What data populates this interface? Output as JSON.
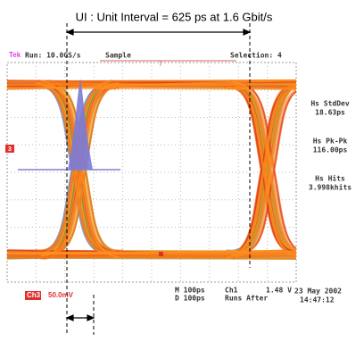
{
  "annotation": {
    "top": "UI : Unit Interval = 625 ps at 1.6 Gbit/s"
  },
  "header": {
    "brand": "Tek",
    "run": "Run: 10.0GS/s",
    "mode": "Sample",
    "trigger": "T",
    "selection": "Selection: 4"
  },
  "measurements": [
    {
      "label": "Hs StdDev",
      "value": "18.63ps"
    },
    {
      "label": "Hs Pk-Pk",
      "value": "116.00ps"
    },
    {
      "label": "Hs Hits",
      "value": "3.998khits"
    }
  ],
  "channel_marker": "3",
  "footer": {
    "channel": "Ch3",
    "scale": "50.0mV",
    "m": "M  100ps",
    "d": "D  100ps",
    "trig_ch": "Ch1",
    "trig_level": "1.48 V",
    "runs": "Runs After",
    "date": "23 May 2002",
    "time": "14:47:12"
  }
}
